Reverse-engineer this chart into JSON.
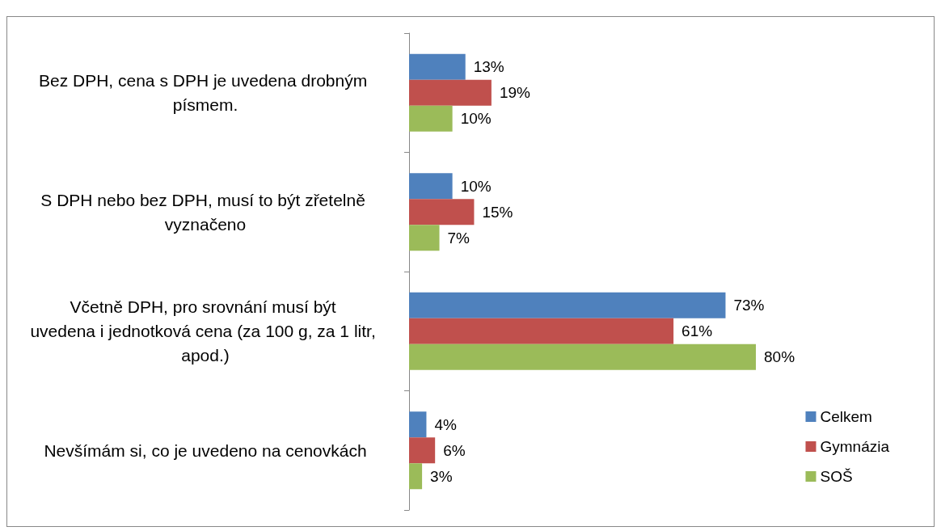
{
  "chart_data": {
    "type": "bar",
    "orientation": "horizontal",
    "categories": [
      "Bez DPH, cena s DPH je uvedena drobným písmem.",
      "S DPH nebo bez DPH, musí to být zřetelně vyznačeno",
      "Včetně DPH, pro srovnání musí být uvedena i jednotková cena (za 100 g, za 1 litr, apod.)",
      "Nevšímám si, co je uvedeno na cenovkách"
    ],
    "series": [
      {
        "name": "Celkem",
        "color": "#4f81bd",
        "values": [
          13,
          10,
          73,
          4
        ],
        "value_labels": [
          "13%",
          "10%",
          "73%",
          "4%"
        ]
      },
      {
        "name": "Gymnázia",
        "color": "#c0504d",
        "values": [
          19,
          15,
          61,
          6
        ],
        "value_labels": [
          "19%",
          "15%",
          "61%",
          "6%"
        ]
      },
      {
        "name": "SOŠ",
        "color": "#9bbb59",
        "values": [
          10,
          7,
          80,
          3
        ],
        "value_labels": [
          "10%",
          "7%",
          "80%",
          "3%"
        ]
      }
    ],
    "tick_labels": "y",
    "legend": "right"
  }
}
